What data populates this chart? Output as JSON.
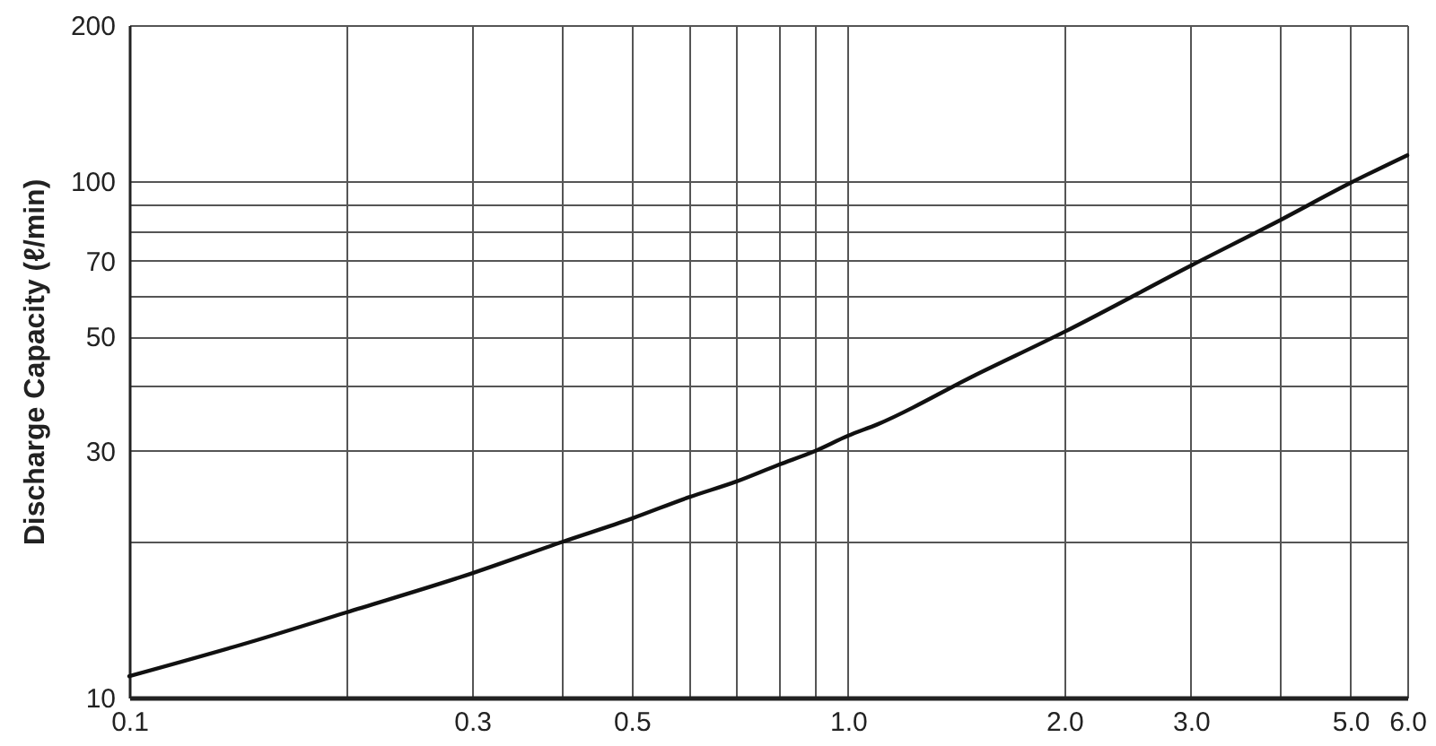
{
  "chart_data": {
    "type": "line",
    "ylabel": "Discharge Capacity (ℓ/min)",
    "x": [
      0.1,
      0.15,
      0.2,
      0.3,
      0.4,
      0.5,
      0.6,
      0.7,
      0.8,
      0.9,
      1.0,
      1.1,
      1.5,
      2.0,
      3.0,
      4.0,
      5.0,
      6.0
    ],
    "series": [
      {
        "color": "#111111",
        "values": [
          11.0,
          12.9,
          14.6,
          17.4,
          20.0,
          22.2,
          24.4,
          26.2,
          28.2,
          30,
          32.1,
          33.8,
          42,
          51,
          68.5,
          84,
          99,
          112
        ]
      }
    ],
    "log": "xy",
    "xlim": [
      0.1,
      6
    ],
    "ylim": [
      10,
      200
    ],
    "xticks": [
      0.1,
      {
        "value": 0.2,
        "label": null
      },
      0.3,
      {
        "value": 0.4,
        "label": null
      },
      0.5,
      {
        "value": 0.6,
        "label": null
      },
      {
        "value": 0.7,
        "label": null
      },
      {
        "value": 0.8,
        "label": null
      },
      {
        "value": 0.9,
        "label": null
      },
      {
        "value": 1,
        "label": "1.0"
      },
      {
        "value": 2,
        "label": "2.0"
      },
      {
        "value": 3,
        "label": "3.0"
      },
      {
        "value": 4,
        "label": null
      },
      {
        "value": 5,
        "label": "5.0"
      },
      {
        "value": 6,
        "label": "6.0"
      }
    ],
    "yticks": [
      10,
      {
        "value": 20,
        "label": null
      },
      30,
      {
        "value": 40,
        "label": null
      },
      50,
      {
        "value": 60,
        "label": null
      },
      70,
      {
        "value": 80,
        "label": null
      },
      {
        "value": 90,
        "label": null
      },
      100,
      200
    ],
    "grid": true,
    "marker": "none",
    "line_style": "solid"
  }
}
